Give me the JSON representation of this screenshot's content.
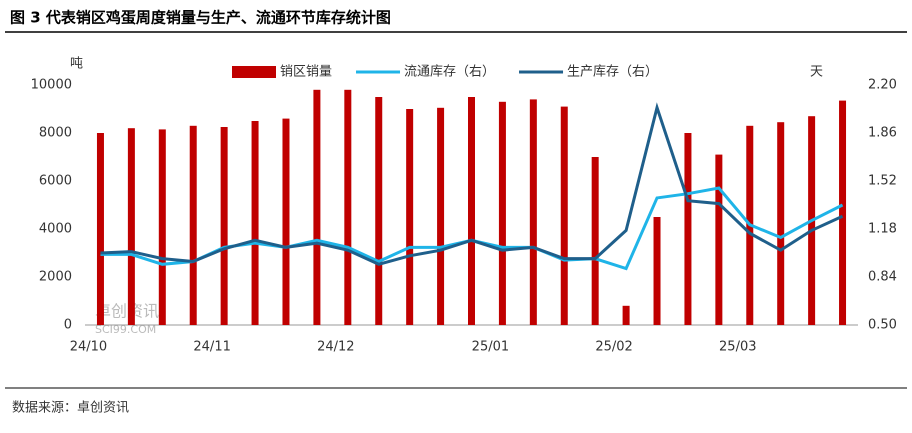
{
  "chart_data": {
    "type": "bar-line",
    "title": "图 3 代表销区鸡蛋周度销量与生产、流通环节库存统计图",
    "source": "数据来源：卓创资讯",
    "watermark": [
      "卓创资讯",
      "SCI99.COM"
    ],
    "y_unit": "吨",
    "y2_unit": "天",
    "categories": [
      "24/10",
      null,
      null,
      null,
      "24/11",
      null,
      null,
      null,
      "24/12",
      null,
      null,
      null,
      null,
      "25/01",
      null,
      null,
      null,
      "25/02",
      null,
      null,
      null,
      "25/03",
      null,
      null,
      null
    ],
    "ylim": [
      0,
      10000
    ],
    "yticks": [
      0,
      2000,
      4000,
      6000,
      8000,
      10000
    ],
    "y2lim": [
      0.5,
      2.2
    ],
    "y2ticks": [
      {
        "value": 0.5,
        "label": "0.50"
      },
      {
        "value": 0.84,
        "label": "0.84"
      },
      {
        "value": 1.18,
        "label": "1.18"
      },
      {
        "value": 1.52,
        "label": "1.52"
      },
      {
        "value": 1.86,
        "label": "1.86"
      },
      {
        "value": 2.2,
        "label": "2.20"
      }
    ],
    "series": [
      {
        "name": "销区销量",
        "kind": "bar",
        "color": "#c00000",
        "values": [
          8000,
          8200,
          8150,
          8300,
          8250,
          8500,
          8600,
          9800,
          9800,
          9500,
          9000,
          9050,
          9500,
          9300,
          9400,
          9100,
          7000,
          800,
          4500,
          8000,
          7100,
          8300,
          8450,
          8700,
          9350
        ]
      },
      {
        "name": "流通库存（右）",
        "kind": "line",
        "axis": "y2",
        "color": "#1fb4e8",
        "values": [
          1.0,
          1.0,
          0.93,
          0.95,
          1.05,
          1.08,
          1.05,
          1.1,
          1.05,
          0.95,
          1.05,
          1.05,
          1.1,
          1.05,
          1.05,
          0.96,
          0.97,
          0.9,
          1.4,
          1.43,
          1.47,
          1.21,
          1.12,
          1.24,
          1.35
        ]
      },
      {
        "name": "生产库存（右）",
        "kind": "line",
        "axis": "y2",
        "color": "#1f5f8b",
        "values": [
          1.01,
          1.02,
          0.97,
          0.95,
          1.04,
          1.1,
          1.05,
          1.08,
          1.03,
          0.93,
          0.99,
          1.03,
          1.1,
          1.03,
          1.05,
          0.97,
          0.97,
          1.17,
          2.04,
          1.38,
          1.36,
          1.15,
          1.03,
          1.17,
          1.27
        ]
      }
    ]
  }
}
